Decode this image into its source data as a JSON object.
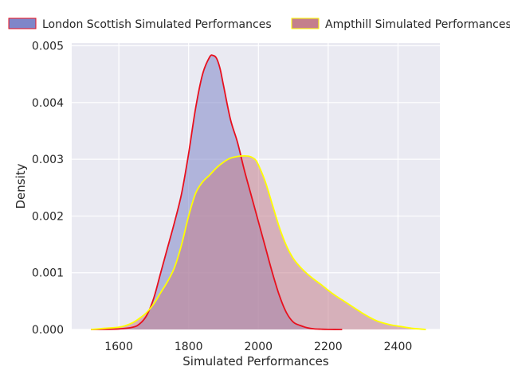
{
  "chart_data": {
    "type": "area",
    "title": "",
    "xlabel": "Simulated Performances",
    "ylabel": "Density",
    "xlim": [
      1465,
      2520
    ],
    "ylim": [
      0,
      0.00505
    ],
    "xticks": [
      1600,
      1800,
      2000,
      2200,
      2400
    ],
    "yticks": [
      0,
      0.001,
      0.002,
      0.003,
      0.004,
      0.005
    ],
    "xtick_labels": [
      "1600",
      "1800",
      "2000",
      "2200",
      "2400"
    ],
    "ytick_labels": [
      "0.000",
      "0.001",
      "0.002",
      "0.003",
      "0.004",
      "0.005"
    ],
    "grid": true,
    "legend_position": "top, above plot, two columns",
    "series": [
      {
        "name": "London Scottish Simulated Performances",
        "fill": "#7f86c9",
        "line": "#e8101e",
        "x": [
          1520,
          1600,
          1640,
          1660,
          1680,
          1700,
          1720,
          1740,
          1760,
          1780,
          1800,
          1820,
          1840,
          1860,
          1870,
          1880,
          1890,
          1900,
          1920,
          1940,
          1960,
          1980,
          2000,
          2020,
          2040,
          2060,
          2080,
          2100,
          2120,
          2140,
          2160,
          2180,
          2200,
          2240
        ],
        "y": [
          0,
          1e-05,
          4e-05,
          0.0001,
          0.00025,
          0.00055,
          0.001,
          0.00145,
          0.0019,
          0.0024,
          0.0031,
          0.0039,
          0.0045,
          0.0048,
          0.00483,
          0.00478,
          0.0046,
          0.0043,
          0.0037,
          0.0033,
          0.0028,
          0.00235,
          0.0019,
          0.00145,
          0.001,
          0.0006,
          0.0003,
          0.00013,
          7e-05,
          3e-05,
          1e-05,
          5e-06,
          2e-06,
          0
        ]
      },
      {
        "name": "Ampthill Simulated Performances",
        "fill": "#c47f8c",
        "line": "#ffff00",
        "x": [
          1520,
          1560,
          1600,
          1620,
          1640,
          1660,
          1680,
          1700,
          1720,
          1740,
          1760,
          1780,
          1800,
          1820,
          1840,
          1860,
          1880,
          1900,
          1920,
          1940,
          1960,
          1975,
          1990,
          2000,
          2020,
          2040,
          2060,
          2080,
          2100,
          2120,
          2140,
          2160,
          2180,
          2200,
          2220,
          2240,
          2260,
          2280,
          2300,
          2320,
          2340,
          2360,
          2380,
          2400,
          2420,
          2440,
          2460,
          2480
        ],
        "y": [
          0,
          2e-05,
          4e-05,
          7e-05,
          0.00012,
          0.0002,
          0.0003,
          0.00045,
          0.00065,
          0.00085,
          0.0011,
          0.0015,
          0.002,
          0.0024,
          0.0026,
          0.00272,
          0.00285,
          0.00295,
          0.00302,
          0.00305,
          0.00306,
          0.00305,
          0.003,
          0.0029,
          0.0026,
          0.0022,
          0.0018,
          0.00148,
          0.00125,
          0.0011,
          0.00098,
          0.00088,
          0.00079,
          0.00069,
          0.0006,
          0.00052,
          0.00044,
          0.00036,
          0.00028,
          0.00021,
          0.00015,
          0.00011,
          8e-05,
          6e-05,
          4e-05,
          2e-05,
          1e-05,
          0
        ]
      }
    ]
  },
  "colors": {
    "plot_background": "#eaeaf2",
    "grid": "#ffffff"
  }
}
